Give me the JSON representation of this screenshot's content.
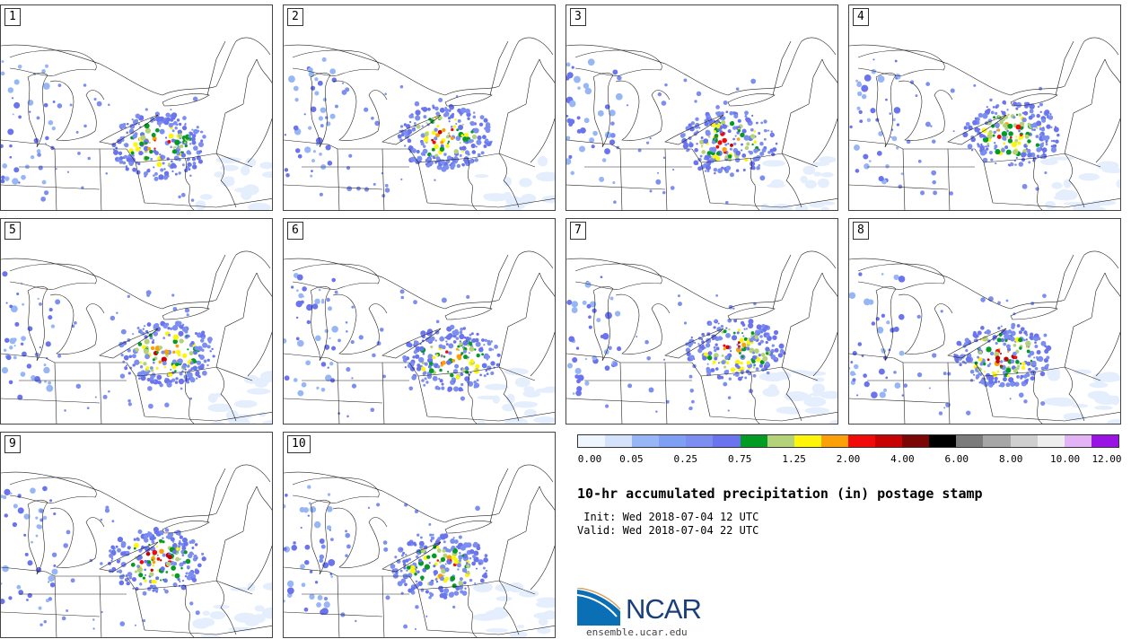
{
  "title": "10-hr accumulated precipitation (in) postage stamp",
  "init_label": " Init: Wed 2018-07-04 12 UTC",
  "valid_label": "Valid: Wed 2018-07-04 22 UTC",
  "logo": {
    "text": "NCAR",
    "url": "ensemble.ucar.edu"
  },
  "members": [
    "1",
    "2",
    "3",
    "4",
    "5",
    "6",
    "7",
    "8",
    "9",
    "10"
  ],
  "colorbar": {
    "colors": [
      "#f0f6ff",
      "#d4e3fb",
      "#97b6f5",
      "#7f9ff4",
      "#7c8ff0",
      "#6a74ee",
      "#029b24",
      "#b4d27a",
      "#fdf60b",
      "#fca00a",
      "#f00a0a",
      "#c60202",
      "#7a0606",
      "#000000",
      "#7b7b7b",
      "#a6a6a6",
      "#cfcfcf",
      "#eeeeee",
      "#e2b4f6",
      "#9914e4"
    ],
    "labels": [
      "0.00",
      "0.05",
      "0.25",
      "0.75",
      "1.25",
      "2.00",
      "4.00",
      "6.00",
      "8.00",
      "10.00",
      "12.00"
    ]
  }
}
